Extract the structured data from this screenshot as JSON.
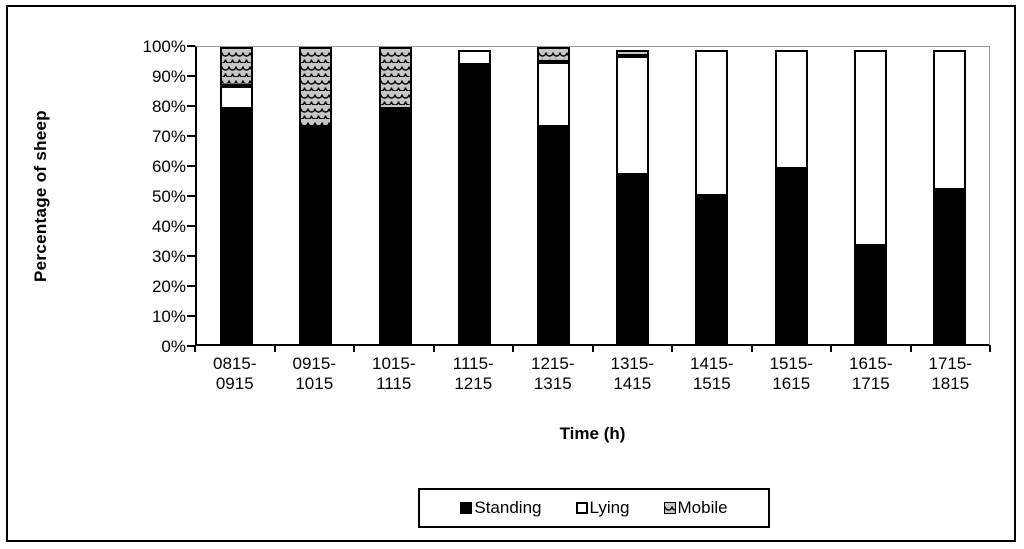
{
  "figure": {
    "y_axis_title": "Percentage of sheep",
    "x_axis_title": "Time (h)",
    "y_tick_labels": [
      "100%",
      "90%",
      "80%",
      "70%",
      "60%",
      "50%",
      "40%",
      "30%",
      "20%",
      "10%",
      "0%"
    ]
  },
  "legend": {
    "items": [
      {
        "label": "Standing",
        "swatch": "standing"
      },
      {
        "label": "Lying",
        "swatch": "lying"
      },
      {
        "label": "Mobile",
        "swatch": "mobile"
      }
    ]
  },
  "colors": {
    "standing_fill": "#000000",
    "lying_fill": "#ffffff",
    "mobile_fill": "#c6c6c6",
    "segment_outline": "#000000",
    "gridline": "#9a9a9a"
  },
  "chart_data": {
    "type": "bar",
    "stacked": true,
    "title": "",
    "xlabel": "Time (h)",
    "ylabel": "Percentage of sheep",
    "ylim": [
      0,
      100
    ],
    "y_tick_step": 10,
    "y_tick_format": "percent",
    "grid": "top-line-only",
    "legend_position": "bottom",
    "categories": [
      "0815-0915",
      "0915-1015",
      "1015-1115",
      "1115-1215",
      "1215-1315",
      "1315-1415",
      "1415-1515",
      "1515-1615",
      "1615-1715",
      "1715-1815"
    ],
    "series": [
      {
        "name": "Standing",
        "style": "solid-black",
        "values": [
          79,
          73,
          79,
          94,
          73,
          57,
          50,
          59,
          33,
          52
        ]
      },
      {
        "name": "Lying",
        "style": "white-outlined",
        "values": [
          8,
          0,
          0,
          5,
          22,
          40,
          49,
          40,
          66,
          47
        ]
      },
      {
        "name": "Mobile",
        "style": "fish-scale-pattern",
        "values": [
          13,
          27,
          21,
          0,
          5,
          2,
          0,
          0,
          0,
          0
        ]
      }
    ]
  }
}
